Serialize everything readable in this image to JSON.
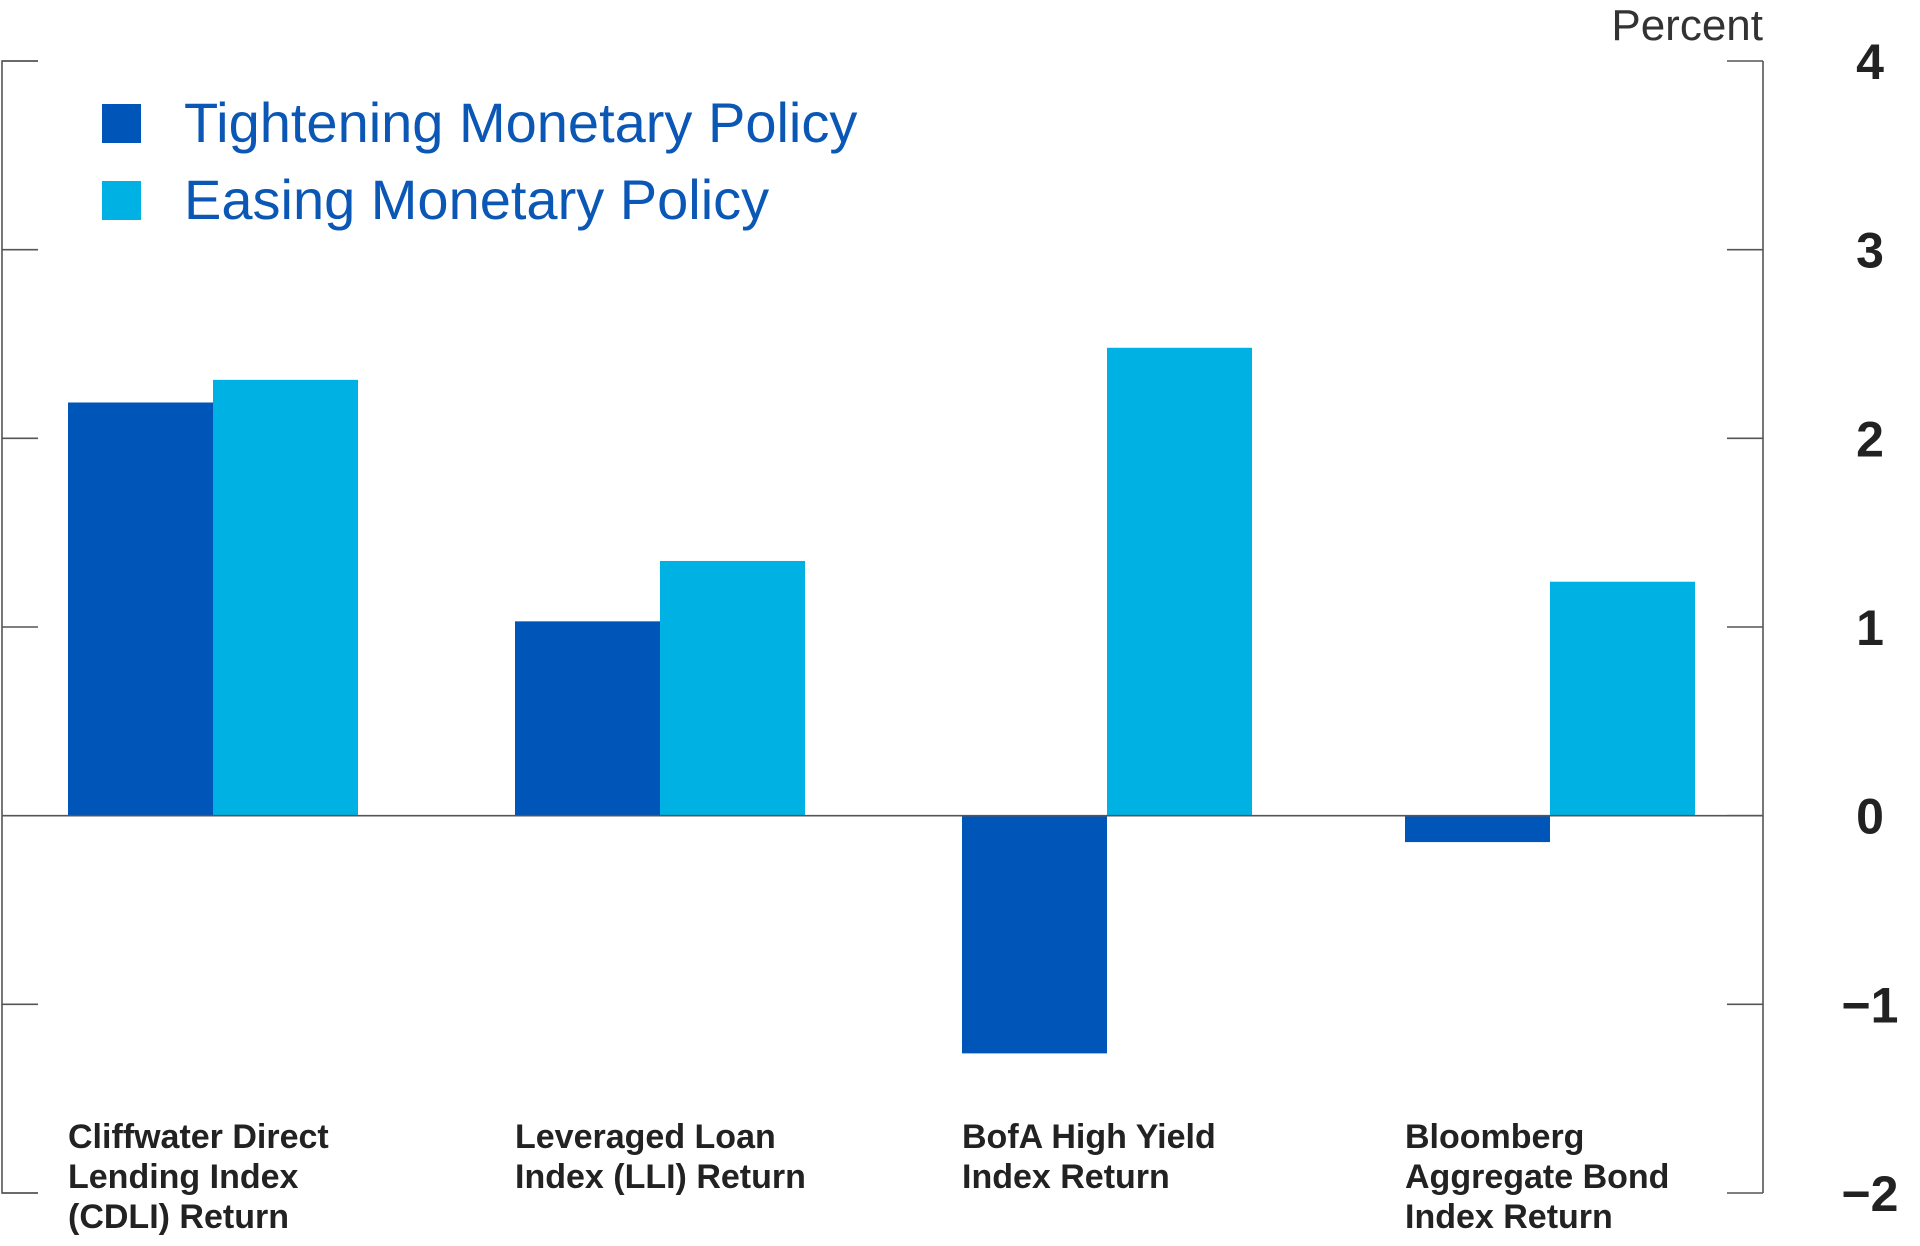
{
  "chart_data": {
    "type": "bar",
    "ylabel": "Percent",
    "ylim": [
      -2,
      4
    ],
    "yticks": [
      "4",
      "3",
      "2",
      "1",
      "0",
      "−1",
      "−2"
    ],
    "categories": [
      [
        "Cliffwater Direct",
        "Lending Index",
        "(CDLI) Return"
      ],
      [
        "Leveraged Loan",
        "Index (LLI) Return"
      ],
      [
        "BofA High Yield",
        "Index Return"
      ],
      [
        "Bloomberg",
        "Aggregate Bond",
        "Index Return"
      ]
    ],
    "series": [
      {
        "name": "Tightening Monetary Policy",
        "color": "#0055b8",
        "values": [
          2.19,
          1.03,
          -1.26,
          -0.14
        ]
      },
      {
        "name": "Easing Monetary Policy",
        "color": "#00b2e3",
        "values": [
          2.31,
          1.35,
          2.48,
          1.24
        ]
      }
    ],
    "legend_position": "top-left",
    "grid": false
  }
}
